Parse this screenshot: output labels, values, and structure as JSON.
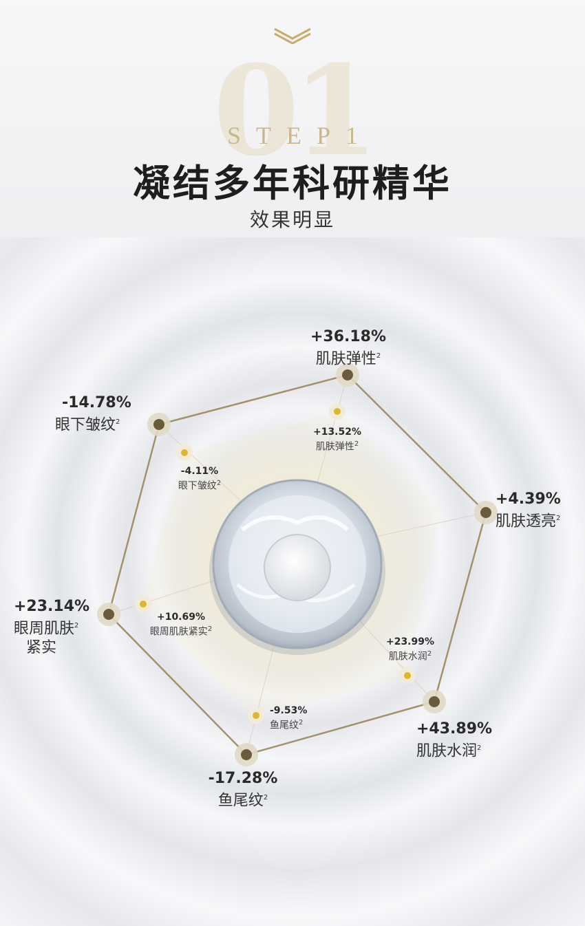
{
  "header": {
    "step_number": "01",
    "step_label": "STEP1",
    "title": "凝结多年科研精华",
    "subtitle": "效果明显"
  },
  "footnote_marker": "2",
  "metrics": {
    "outer": [
      {
        "value": "+36.18%",
        "label": "肌肤弹性"
      },
      {
        "value": "+4.39%",
        "label": "肌肤透亮"
      },
      {
        "value": "+43.89%",
        "label": "肌肤水润"
      },
      {
        "value": "-17.28%",
        "label": "鱼尾纹"
      },
      {
        "value": "+23.14%",
        "label": "眼周肌肤",
        "label2": "紧实"
      },
      {
        "value": "-14.78%",
        "label": "眼下皱纹"
      }
    ],
    "inner": [
      {
        "value": "+13.52%",
        "label": "肌肤弹性"
      },
      {
        "value": "+23.99%",
        "label": "肌肤水润"
      },
      {
        "value": "-9.53%",
        "label": "鱼尾纹"
      },
      {
        "value": "+10.69%",
        "label": "眼周肌肤紧实"
      },
      {
        "value": "-4.11%",
        "label": "眼下皱纹"
      }
    ]
  },
  "colors": {
    "line": "#a3916c",
    "outer_dot": "#6b5a3c",
    "inner_dot": "#e0b62f",
    "glow": "#f2e7c6"
  }
}
